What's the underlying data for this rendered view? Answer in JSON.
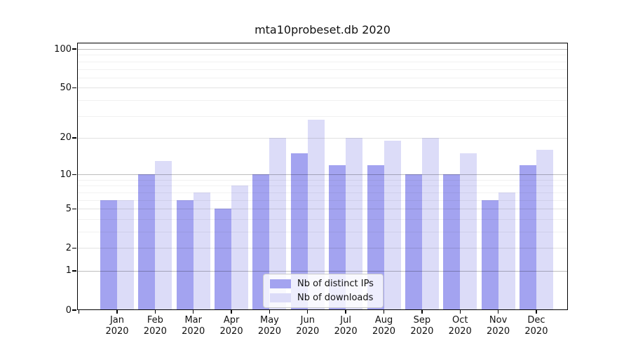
{
  "chart_data": {
    "type": "bar",
    "title": "mta10probeset.db 2020",
    "categories": [
      "Jan 2020",
      "Feb 2020",
      "Mar 2020",
      "Apr 2020",
      "May 2020",
      "Jun 2020",
      "Jul 2020",
      "Aug 2020",
      "Sep 2020",
      "Oct 2020",
      "Nov 2020",
      "Dec 2020"
    ],
    "series": [
      {
        "name": "Nb of distinct IPs",
        "color": "#a3a3f0",
        "values": [
          6,
          10,
          6,
          5,
          10,
          15,
          12,
          12,
          10,
          10,
          6,
          12
        ]
      },
      {
        "name": "Nb of downloads",
        "color": "#dcdcf8",
        "values": [
          6,
          13,
          7,
          8,
          20,
          28,
          20,
          19,
          20,
          15,
          7,
          16
        ]
      }
    ],
    "xlabel": "",
    "ylabel": "",
    "yscale": "log1p",
    "ylim": [
      0,
      112
    ],
    "y_tick_labels": [
      100,
      50,
      20,
      10,
      5,
      2,
      1,
      0
    ],
    "grid_decade": [
      1,
      10,
      100
    ],
    "grid_mid": [
      2,
      5,
      20,
      50
    ],
    "grid_minor": [
      3,
      4,
      6,
      7,
      8,
      9,
      30,
      40,
      60,
      70,
      80,
      90
    ],
    "grid": "on",
    "legend_position": "lower center"
  },
  "colors": {
    "spine": "#000000",
    "background": "#ffffff",
    "text": "#111111"
  }
}
